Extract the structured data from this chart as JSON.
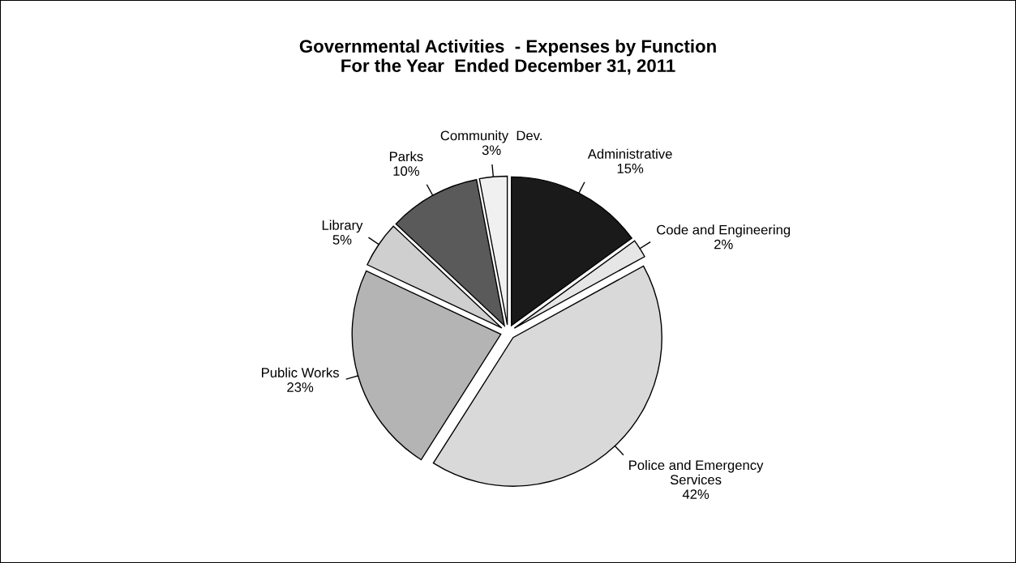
{
  "chart_data": {
    "type": "pie",
    "title": "Governmental Activities  - Expenses by Function\nFor the Year  Ended December 31, 2011",
    "categories": [
      "Administrative",
      "Code and Engineering",
      "Police and Emergency\nServices",
      "Public Works",
      "Library",
      "Parks",
      "Community  Dev."
    ],
    "values": [
      15,
      2,
      42,
      23,
      5,
      10,
      3
    ],
    "colors": [
      "#1a1a1a",
      "#e6e6e6",
      "#d9d9d9",
      "#b4b4b4",
      "#cfcfcf",
      "#5a5a5a",
      "#f0f0f0"
    ],
    "value_labels": [
      "15%",
      "2%",
      "42%",
      "23%",
      "5%",
      "10%",
      "3%"
    ]
  }
}
